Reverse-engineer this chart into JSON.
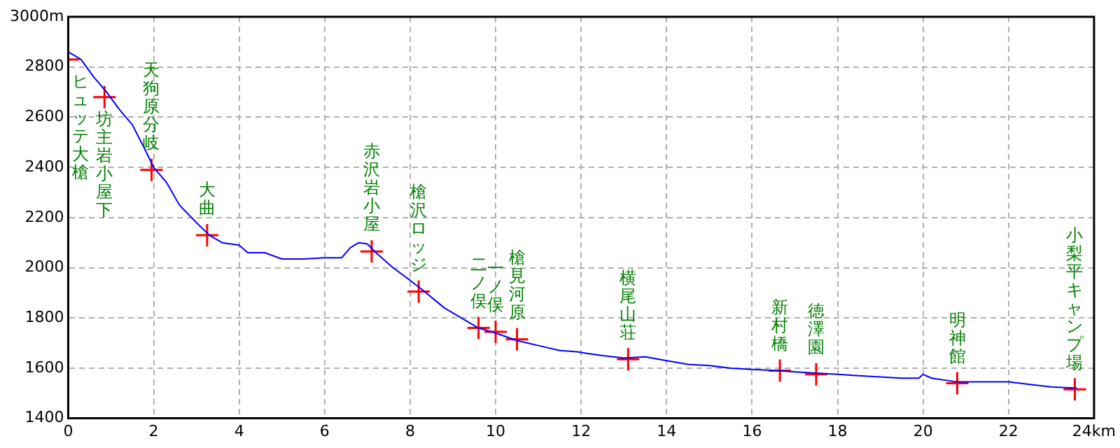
{
  "chart_data": {
    "type": "line",
    "xlim": [
      0,
      24
    ],
    "xticks": [
      0,
      2,
      4,
      6,
      8,
      10,
      12,
      14,
      16,
      18,
      20,
      22,
      {
        "value": 24,
        "label": "24km"
      }
    ],
    "ylim": [
      1400,
      3000
    ],
    "yticks": [
      1400,
      1600,
      1800,
      2000,
      2200,
      2400,
      2600,
      2800,
      {
        "value": 3000,
        "label": "3000m"
      }
    ],
    "grid": true,
    "legend": false,
    "series": [
      {
        "color": "#0000ff",
        "marker": "none",
        "line_style": "solid",
        "x": [
          0,
          0.3,
          0.6,
          0.9,
          1.2,
          1.5,
          1.8,
          2.0,
          2.3,
          2.6,
          3.0,
          3.3,
          3.6,
          4.0,
          4.2,
          4.6,
          5.0,
          5.5,
          6.0,
          6.4,
          6.6,
          6.8,
          7.0,
          7.2,
          7.6,
          8.0,
          8.3,
          8.8,
          9.3,
          9.6,
          10.0,
          10.5,
          11.0,
          11.5,
          11.9,
          12.1,
          12.5,
          13.0,
          13.5,
          14.0,
          14.5,
          15.0,
          15.5,
          16.0,
          16.6,
          17.0,
          17.5,
          18.0,
          18.5,
          19.0,
          19.5,
          19.9,
          20.0,
          20.2,
          20.8,
          21.5,
          22.0,
          22.5,
          23.0,
          23.6
        ],
        "values": [
          2860,
          2830,
          2760,
          2700,
          2630,
          2570,
          2470,
          2400,
          2340,
          2250,
          2180,
          2130,
          2100,
          2090,
          2060,
          2060,
          2035,
          2035,
          2040,
          2040,
          2080,
          2100,
          2095,
          2060,
          2000,
          1950,
          1910,
          1840,
          1790,
          1760,
          1740,
          1710,
          1690,
          1670,
          1665,
          1660,
          1650,
          1640,
          1645,
          1630,
          1615,
          1610,
          1600,
          1595,
          1590,
          1585,
          1580,
          1575,
          1570,
          1565,
          1560,
          1560,
          1575,
          1560,
          1545,
          1545,
          1545,
          1535,
          1525,
          1520
        ]
      },
      {
        "type": "scatter",
        "color": "#ff0000",
        "marker": "cross",
        "x": [
          0,
          0.85,
          1.95,
          3.25,
          7.1,
          8.2,
          9.6,
          10.0,
          10.5,
          13.1,
          16.65,
          17.5,
          20.8,
          23.55
        ],
        "values": [
          2830,
          2680,
          2390,
          2130,
          2065,
          1905,
          1760,
          1745,
          1715,
          1635,
          1590,
          1575,
          1540,
          1515
        ]
      }
    ],
    "annotations": [
      {
        "text": "ヒュッテ大槍",
        "x": 0,
        "y": 2830
      },
      {
        "text": "坊主岩小屋下",
        "x": 0.85,
        "y": 2680
      },
      {
        "text": "天狗原分岐",
        "x": 1.95,
        "y": 2390
      },
      {
        "text": "大曲",
        "x": 3.25,
        "y": 2130
      },
      {
        "text": "赤沢岩小屋",
        "x": 7.1,
        "y": 2065
      },
      {
        "text": "槍沢ロッジ",
        "x": 8.2,
        "y": 1905
      },
      {
        "text": "二ノ俣",
        "x": 9.6,
        "y": 1760
      },
      {
        "text": "一ノ俣",
        "x": 10.0,
        "y": 1745
      },
      {
        "text": "槍見河原",
        "x": 10.5,
        "y": 1715
      },
      {
        "text": "横尾山荘",
        "x": 13.1,
        "y": 1635
      },
      {
        "text": "新村橋",
        "x": 16.65,
        "y": 1590
      },
      {
        "text": "徳澤園",
        "x": 17.5,
        "y": 1575
      },
      {
        "text": "明神館",
        "x": 20.8,
        "y": 1540
      },
      {
        "text": "小梨平キャンプ場",
        "x": 23.55,
        "y": 1515
      }
    ]
  }
}
